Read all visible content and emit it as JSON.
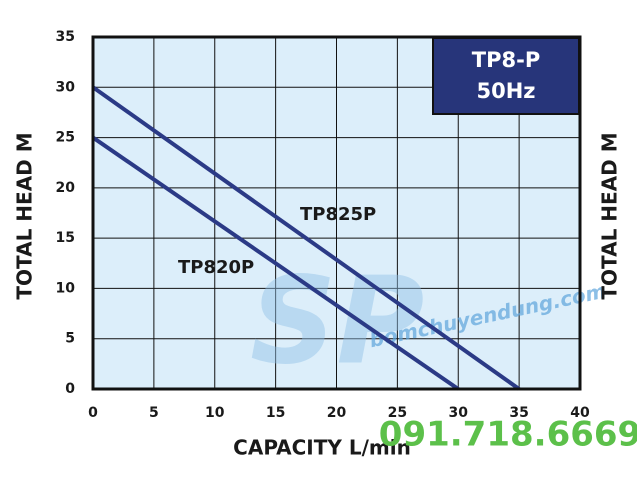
{
  "chart_data": {
    "type": "line",
    "title": "TP8-P",
    "subtitle": "50Hz",
    "xlabel": "CAPACITY L/min",
    "ylabel": "TOTAL HEAD M",
    "series": [
      {
        "name": "TP825P",
        "color": "#2b3a86",
        "x": [
          0,
          35
        ],
        "values": [
          30,
          0
        ]
      },
      {
        "name": "TP820P",
        "color": "#2b3a86",
        "x": [
          0,
          30
        ],
        "values": [
          25,
          0
        ]
      }
    ],
    "xlim": [
      0,
      40
    ],
    "xticks": [
      0,
      5,
      10,
      15,
      20,
      25,
      30,
      35,
      40
    ],
    "ylim": [
      0,
      35
    ],
    "yticks": [
      0,
      5,
      10,
      15,
      20,
      25,
      30,
      35
    ],
    "grid": true,
    "annotations": [
      "bomchuyendung.com",
      "091.718.6669"
    ]
  }
}
